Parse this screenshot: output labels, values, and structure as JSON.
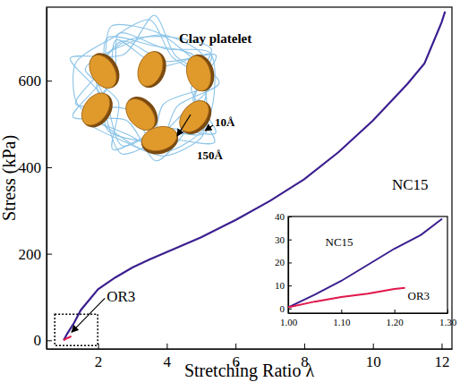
{
  "chart_data": [
    {
      "type": "line",
      "xlabel": "Stretching Ratio λ",
      "ylabel": "Stress (kPa)",
      "xlim": [
        0.5,
        12.3
      ],
      "ylim": [
        -20,
        770
      ],
      "xticks": [
        2,
        4,
        6,
        8,
        10,
        12
      ],
      "yticks": [
        0,
        200,
        400,
        600
      ],
      "annotations": [
        "Clay platelet",
        "10Å",
        "150Å"
      ],
      "series": [
        {
          "name": "NC15",
          "color": "#3b1f8f",
          "x": [
            1,
            1.1,
            1.3,
            1.5,
            2,
            2.5,
            3,
            3.5,
            4,
            5,
            6,
            7,
            8,
            9,
            10,
            11,
            11.5,
            12,
            12.1
          ],
          "values": [
            0,
            15,
            40,
            70,
            118,
            145,
            168,
            187,
            204,
            238,
            278,
            322,
            372,
            435,
            508,
            592,
            640,
            735,
            760
          ]
        },
        {
          "name": "OR3",
          "color": "#e0174a",
          "x": [
            1,
            1.05,
            1.1,
            1.15,
            1.2,
            1.22
          ],
          "values": [
            0,
            3,
            5,
            6.5,
            8.5,
            9
          ]
        }
      ]
    },
    {
      "type": "line",
      "xlim": [
        1,
        1.3
      ],
      "ylim": [
        -2,
        40
      ],
      "xticks": [
        {
          "value": 1,
          "label": "1.00"
        },
        {
          "value": 1.1,
          "label": "1.10"
        },
        {
          "value": 1.2,
          "label": "1.20"
        },
        {
          "value": 1.3,
          "label": "1.30"
        }
      ],
      "yticks": [
        0,
        10,
        20,
        30,
        40
      ],
      "series": [
        {
          "name": "NC15",
          "color": "#3b1f8f",
          "x": [
            1,
            1.05,
            1.1,
            1.15,
            1.2,
            1.25,
            1.29
          ],
          "values": [
            0.5,
            6,
            12,
            19,
            26,
            32,
            39
          ]
        },
        {
          "name": "OR3",
          "color": "#e0174a",
          "x": [
            1,
            1.05,
            1.1,
            1.15,
            1.2,
            1.22
          ],
          "values": [
            0.5,
            3,
            5,
            6.5,
            8.5,
            9
          ]
        }
      ]
    }
  ]
}
